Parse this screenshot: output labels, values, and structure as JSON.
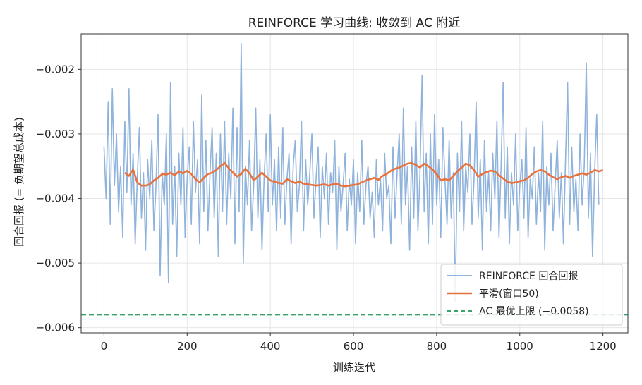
{
  "chart_data": {
    "type": "line",
    "title": "REINFORCE 学习曲线: 收敛到 AC 附近",
    "xlabel": "训练迭代",
    "ylabel": "回合回报 (= 负期望总成本)",
    "xlim": [
      -55,
      1260
    ],
    "ylim": [
      -0.00608,
      -0.00145
    ],
    "xticks": [
      0,
      200,
      400,
      600,
      800,
      1000,
      1200
    ],
    "xtick_labels": [
      "0",
      "200",
      "400",
      "600",
      "800",
      "1000",
      "1200"
    ],
    "yticks": [
      -0.006,
      -0.005,
      -0.004,
      -0.003,
      -0.002
    ],
    "ytick_labels": [
      "−0.006",
      "−0.005",
      "−0.004",
      "−0.003",
      "−0.002"
    ],
    "grid": true,
    "legend_position": "lower-right",
    "series": [
      {
        "name": "REINFORCE 回合回报",
        "color": "#8fb3dc",
        "style": "solid",
        "x_start": 0,
        "x_step": 5,
        "values": [
          -0.0032,
          -0.004,
          -0.0025,
          -0.0044,
          -0.0023,
          -0.0038,
          -0.003,
          -0.0042,
          -0.0035,
          -0.0046,
          -0.0028,
          -0.0039,
          -0.0023,
          -0.0041,
          -0.0033,
          -0.0047,
          -0.0037,
          -0.0029,
          -0.0043,
          -0.0036,
          -0.0048,
          -0.0034,
          -0.004,
          -0.0031,
          -0.0045,
          -0.0038,
          -0.0027,
          -0.0052,
          -0.0036,
          -0.0041,
          -0.003,
          -0.0053,
          -0.0022,
          -0.0044,
          -0.0035,
          -0.0049,
          -0.0033,
          -0.0041,
          -0.0029,
          -0.0046,
          -0.0037,
          -0.0032,
          -0.0044,
          -0.0028,
          -0.0039,
          -0.0034,
          -0.0047,
          -0.0024,
          -0.0042,
          -0.0031,
          -0.0045,
          -0.0036,
          -0.0029,
          -0.0043,
          -0.0033,
          -0.0049,
          -0.003,
          -0.0042,
          -0.0028,
          -0.0044,
          -0.0033,
          -0.004,
          -0.0026,
          -0.0047,
          -0.0029,
          -0.0042,
          -0.0016,
          -0.005,
          -0.0035,
          -0.0041,
          -0.0031,
          -0.0045,
          -0.0038,
          -0.0026,
          -0.0043,
          -0.0034,
          -0.0048,
          -0.0037,
          -0.003,
          -0.0042,
          -0.0027,
          -0.0041,
          -0.0034,
          -0.0045,
          -0.0032,
          -0.0043,
          -0.0029,
          -0.0044,
          -0.0037,
          -0.0033,
          -0.0047,
          -0.0035,
          -0.0031,
          -0.0042,
          -0.0038,
          -0.0028,
          -0.0045,
          -0.0034,
          -0.0041,
          -0.0036,
          -0.003,
          -0.0043,
          -0.0037,
          -0.0032,
          -0.0046,
          -0.0035,
          -0.004,
          -0.0033,
          -0.0044,
          -0.0036,
          -0.0039,
          -0.0031,
          -0.0048,
          -0.0035,
          -0.0042,
          -0.0038,
          -0.0033,
          -0.0045,
          -0.0037,
          -0.0041,
          -0.0034,
          -0.0047,
          -0.0036,
          -0.0042,
          -0.0031,
          -0.0044,
          -0.0038,
          -0.0035,
          -0.0043,
          -0.0039,
          -0.0046,
          -0.0034,
          -0.0041,
          -0.0037,
          -0.0045,
          -0.0033,
          -0.004,
          -0.0038,
          -0.0047,
          -0.0032,
          -0.0043,
          -0.0036,
          -0.003,
          -0.0044,
          -0.0026,
          -0.0041,
          -0.0035,
          -0.0048,
          -0.0032,
          -0.0043,
          -0.0028,
          -0.0045,
          -0.0036,
          -0.0021,
          -0.0042,
          -0.0033,
          -0.0047,
          -0.003,
          -0.0044,
          -0.0027,
          -0.0041,
          -0.0034,
          -0.0046,
          -0.0029,
          -0.0037,
          -0.0044,
          -0.0031,
          -0.0043,
          -0.0036,
          -0.0056,
          -0.0033,
          -0.0042,
          -0.0028,
          -0.0045,
          -0.0035,
          -0.0039,
          -0.003,
          -0.0044,
          -0.0037,
          -0.0025,
          -0.0043,
          -0.0034,
          -0.0048,
          -0.0031,
          -0.0042,
          -0.0036,
          -0.0045,
          -0.0033,
          -0.004,
          -0.0028,
          -0.0046,
          -0.0035,
          -0.0022,
          -0.0043,
          -0.0032,
          -0.0047,
          -0.0036,
          -0.0041,
          -0.003,
          -0.0045,
          -0.0038,
          -0.0034,
          -0.0043,
          -0.0029,
          -0.0046,
          -0.0037,
          -0.004,
          -0.0032,
          -0.0044,
          -0.0036,
          -0.0042,
          -0.0028,
          -0.0048,
          -0.0035,
          -0.0041,
          -0.0033,
          -0.0045,
          -0.0038,
          -0.0031,
          -0.0043,
          -0.0036,
          -0.0047,
          -0.0034,
          -0.0022,
          -0.0044,
          -0.0032,
          -0.0042,
          -0.0037,
          -0.0045,
          -0.003,
          -0.0041,
          -0.0035,
          -0.0019,
          -0.0043,
          -0.0033,
          -0.0049,
          -0.0036,
          -0.0027,
          -0.0041
        ]
      },
      {
        "name": "平滑(窗口50)",
        "color": "#e8713c",
        "style": "solid",
        "x": [
          50,
          60,
          70,
          80,
          90,
          100,
          110,
          120,
          130,
          140,
          150,
          160,
          170,
          180,
          190,
          200,
          210,
          220,
          230,
          240,
          250,
          260,
          270,
          280,
          290,
          300,
          310,
          320,
          330,
          340,
          350,
          360,
          370,
          380,
          390,
          400,
          410,
          420,
          430,
          440,
          450,
          460,
          470,
          480,
          490,
          500,
          510,
          520,
          530,
          540,
          550,
          560,
          570,
          580,
          590,
          600,
          610,
          620,
          630,
          640,
          650,
          660,
          670,
          680,
          690,
          700,
          710,
          720,
          730,
          740,
          750,
          760,
          770,
          780,
          790,
          800,
          810,
          820,
          830,
          840,
          850,
          860,
          870,
          880,
          890,
          900,
          910,
          920,
          930,
          940,
          950,
          960,
          970,
          980,
          990,
          1000,
          1010,
          1020,
          1030,
          1040,
          1050,
          1060,
          1070,
          1080,
          1090,
          1100,
          1110,
          1120,
          1130,
          1140,
          1150,
          1160,
          1170,
          1180,
          1190,
          1200
        ],
        "values": [
          -0.0036,
          -0.00365,
          -0.00355,
          -0.00375,
          -0.0038,
          -0.0038,
          -0.00378,
          -0.00372,
          -0.00368,
          -0.00362,
          -0.00363,
          -0.0036,
          -0.00364,
          -0.00358,
          -0.00361,
          -0.00357,
          -0.00362,
          -0.0037,
          -0.00375,
          -0.00368,
          -0.00362,
          -0.0036,
          -0.00356,
          -0.0035,
          -0.00345,
          -0.00353,
          -0.0036,
          -0.00366,
          -0.00362,
          -0.00354,
          -0.00361,
          -0.00372,
          -0.00366,
          -0.0036,
          -0.00366,
          -0.00372,
          -0.00374,
          -0.00376,
          -0.00377,
          -0.0037,
          -0.00373,
          -0.00376,
          -0.00374,
          -0.00377,
          -0.00378,
          -0.00379,
          -0.0038,
          -0.00379,
          -0.00378,
          -0.0038,
          -0.00378,
          -0.00377,
          -0.0038,
          -0.00381,
          -0.0038,
          -0.00379,
          -0.00378,
          -0.00375,
          -0.00372,
          -0.0037,
          -0.00368,
          -0.00371,
          -0.00365,
          -0.00362,
          -0.00357,
          -0.00354,
          -0.00352,
          -0.00349,
          -0.00346,
          -0.00345,
          -0.00348,
          -0.00352,
          -0.00346,
          -0.0035,
          -0.00355,
          -0.00362,
          -0.00372,
          -0.0037,
          -0.00372,
          -0.00365,
          -0.00358,
          -0.00352,
          -0.00346,
          -0.00349,
          -0.00356,
          -0.00366,
          -0.00362,
          -0.00359,
          -0.00357,
          -0.00358,
          -0.00364,
          -0.00369,
          -0.00374,
          -0.00376,
          -0.00375,
          -0.00373,
          -0.00372,
          -0.00368,
          -0.00362,
          -0.00358,
          -0.00356,
          -0.00358,
          -0.00363,
          -0.00367,
          -0.0037,
          -0.00367,
          -0.00365,
          -0.00368,
          -0.00365,
          -0.00363,
          -0.00361,
          -0.00363,
          -0.0036,
          -0.00356,
          -0.00358,
          -0.00356
        ]
      },
      {
        "name": "AC 最优上限 (−0.0058)",
        "color": "#3aa26b",
        "style": "dashed",
        "y": -0.0058
      }
    ]
  }
}
